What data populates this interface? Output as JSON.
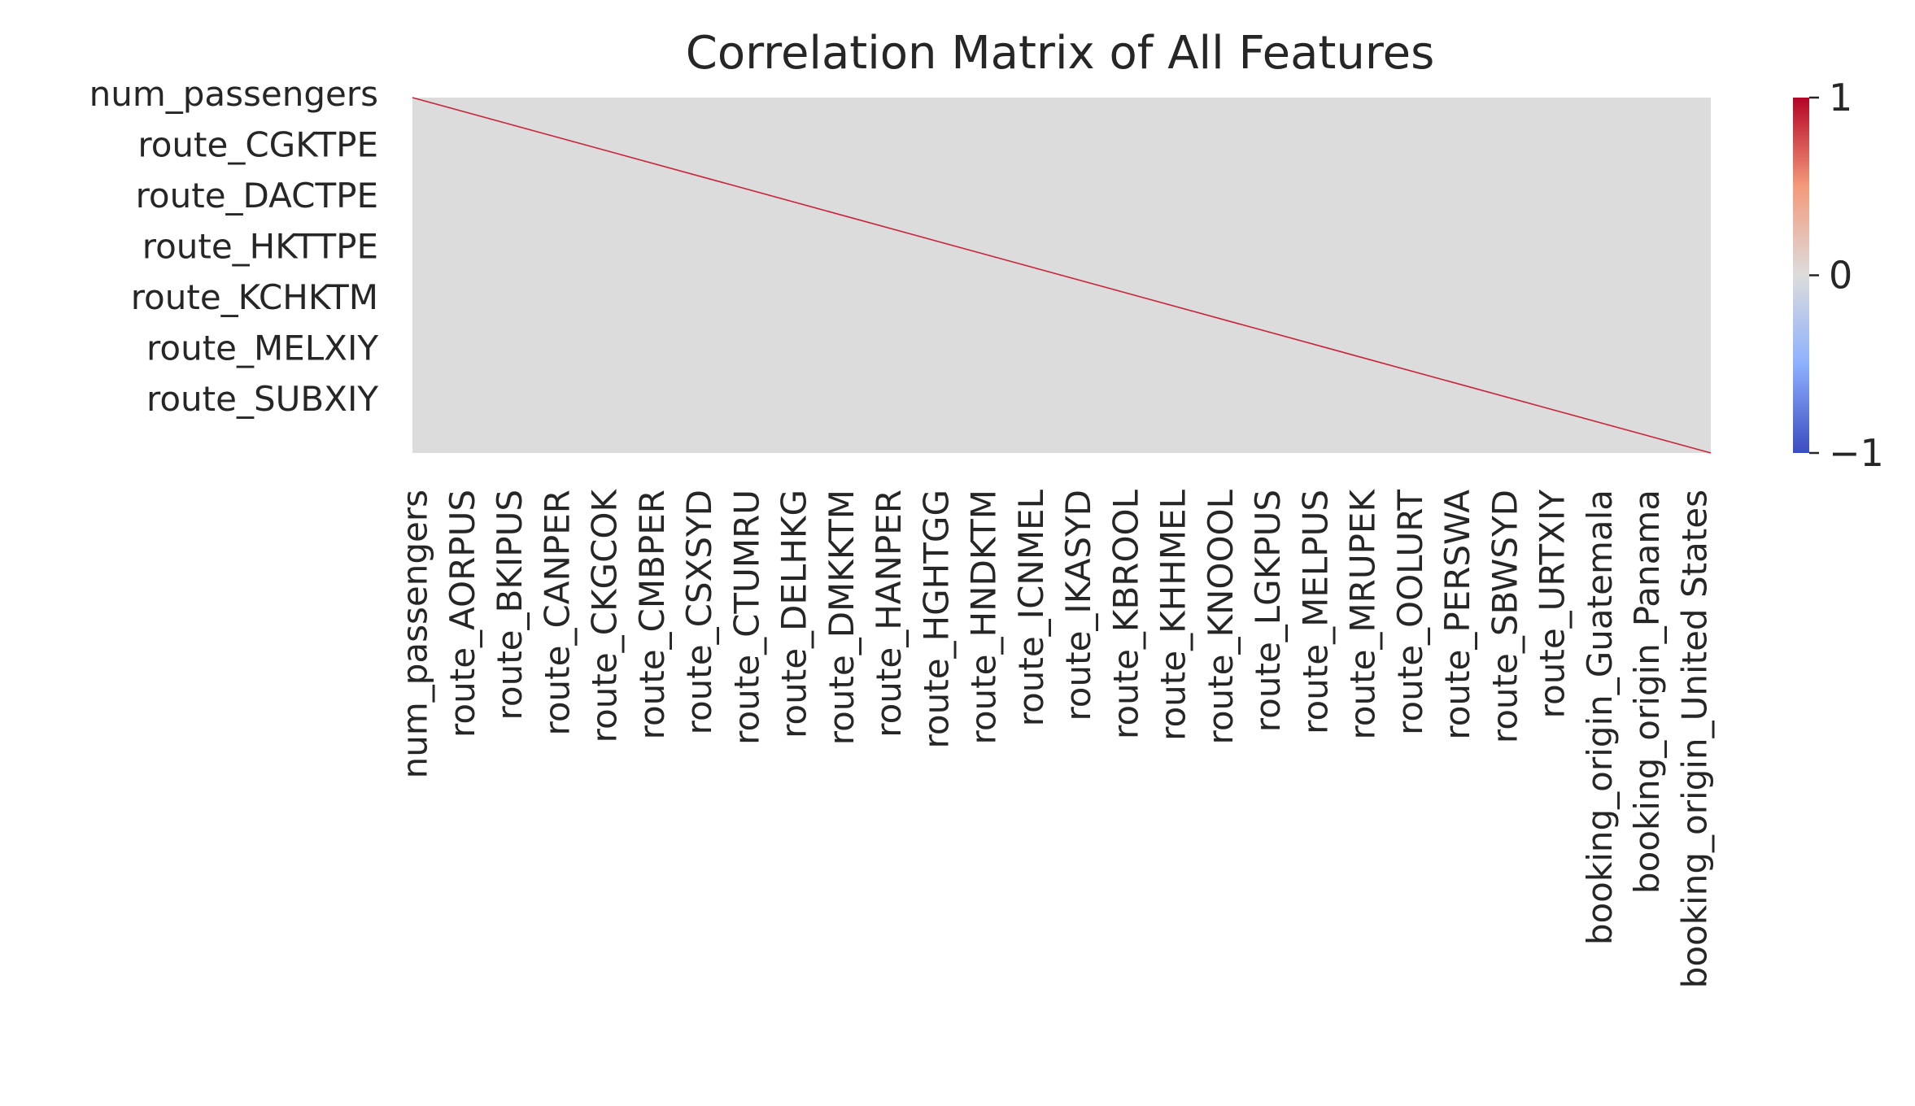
{
  "chart_data": {
    "type": "heatmap",
    "title": "Correlation Matrix of All Features",
    "colormap": "coolwarm",
    "value_range": [
      -1,
      1
    ],
    "colorbar": {
      "ticks": [
        1,
        0,
        -1
      ],
      "tick_labels": [
        "1",
        "0",
        "−1"
      ],
      "colors": {
        "low": "#3b4cc0",
        "mid": "#dddcdc",
        "high": "#b40426"
      }
    },
    "background_value": 0,
    "diagonal_value": 1,
    "row_labels": [
      "num_passengers",
      "route_CGKTPE",
      "route_DACTPE",
      "route_HKTTPE",
      "route_KCHKTM",
      "route_MELXIY",
      "route_SUBXIY"
    ],
    "column_labels": [
      "num_passengers",
      "route_AORPUS",
      "route_BKIPUS",
      "route_CANPER",
      "route_CKGCOK",
      "route_CMBPER",
      "route_CSXSYD",
      "route_CTUMRU",
      "route_DELHKG",
      "route_DMKKTM",
      "route_HANPER",
      "route_HGHTGG",
      "route_HNDKTM",
      "route_ICNMEL",
      "route_IKASYD",
      "route_KBROOL",
      "route_KHHMEL",
      "route_KNOOOL",
      "route_LGKPUS",
      "route_MELPUS",
      "route_MRUPEK",
      "route_OOLURT",
      "route_PERSWA",
      "route_SBWSYD",
      "route_URTXIY",
      "booking_origin_Guatemala",
      "booking_origin_Panama",
      "booking_origin_United States"
    ]
  }
}
